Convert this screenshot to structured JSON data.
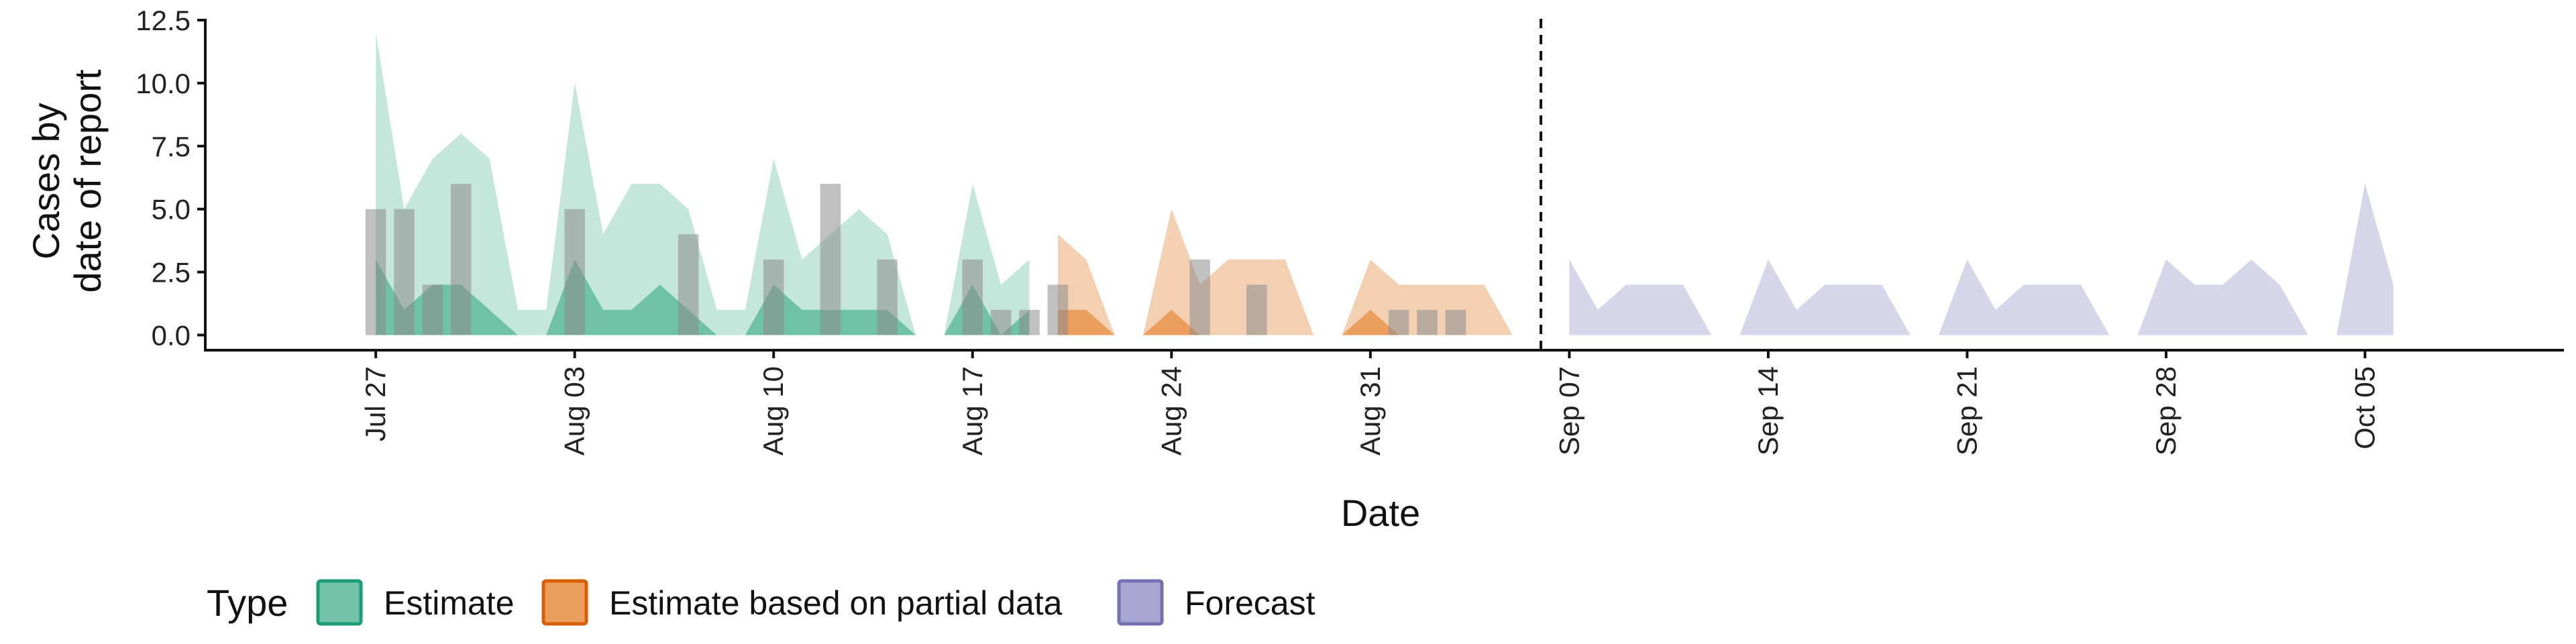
{
  "chart_data": {
    "type": "area",
    "xlabel": "Date",
    "ylabel_lines": [
      "Cases by",
      "date of report"
    ],
    "ylim": [
      -0.6,
      12.5
    ],
    "y_ticks": [
      "0.0",
      "2.5",
      "5.0",
      "7.5",
      "10.0",
      "12.5"
    ],
    "y_tick_values": [
      0,
      2.5,
      5,
      7.5,
      10,
      12.5
    ],
    "xlim": [
      "2020-07-21",
      "2020-10-12"
    ],
    "x_ticks": [
      {
        "date": "2020-07-27",
        "label": "Jul 27"
      },
      {
        "date": "2020-08-03",
        "label": "Aug 03"
      },
      {
        "date": "2020-08-10",
        "label": "Aug 10"
      },
      {
        "date": "2020-08-17",
        "label": "Aug 17"
      },
      {
        "date": "2020-08-24",
        "label": "Aug 24"
      },
      {
        "date": "2020-08-31",
        "label": "Aug 31"
      },
      {
        "date": "2020-09-07",
        "label": "Sep 07"
      },
      {
        "date": "2020-09-14",
        "label": "Sep 14"
      },
      {
        "date": "2020-09-21",
        "label": "Sep 21"
      },
      {
        "date": "2020-09-28",
        "label": "Sep 28"
      },
      {
        "date": "2020-10-05",
        "label": "Oct 05"
      }
    ],
    "vline_date": "2020-09-06",
    "legend": {
      "title": "Type",
      "position": "bottom-left",
      "entries": [
        {
          "label": "Estimate",
          "fill": "#72c3a7",
          "stroke": "#1b9e77"
        },
        {
          "label": "Estimate based on partial data",
          "fill": "#eb9e5e",
          "stroke": "#d95f02"
        },
        {
          "label": "Forecast",
          "fill": "#aaa6d1",
          "stroke": "#7570b3"
        }
      ]
    },
    "observed_cases": {
      "color": "#8c8c8c",
      "points": [
        [
          "2020-07-27",
          5
        ],
        [
          "2020-07-28",
          5
        ],
        [
          "2020-07-29",
          2
        ],
        [
          "2020-07-30",
          6
        ],
        [
          "2020-08-03",
          5
        ],
        [
          "2020-08-07",
          4
        ],
        [
          "2020-08-10",
          3
        ],
        [
          "2020-08-12",
          6
        ],
        [
          "2020-08-14",
          3
        ],
        [
          "2020-08-17",
          3
        ],
        [
          "2020-08-18",
          1
        ],
        [
          "2020-08-19",
          1
        ],
        [
          "2020-08-20",
          2
        ],
        [
          "2020-08-25",
          3
        ],
        [
          "2020-08-27",
          2
        ],
        [
          "2020-09-01",
          1
        ],
        [
          "2020-09-02",
          1
        ],
        [
          "2020-09-03",
          1
        ]
      ]
    },
    "series": [
      {
        "type_label": "Estimate",
        "outer_color": "#c5e6da",
        "inner_color": "#6fc2a5",
        "x": [
          "2020-07-27",
          "2020-07-28",
          "2020-07-29",
          "2020-07-30",
          "2020-07-31",
          "2020-08-01",
          "2020-08-02",
          "2020-08-03",
          "2020-08-04",
          "2020-08-05",
          "2020-08-06",
          "2020-08-07",
          "2020-08-08",
          "2020-08-09",
          "2020-08-10",
          "2020-08-11",
          "2020-08-12",
          "2020-08-13",
          "2020-08-14",
          "2020-08-15",
          "2020-08-16",
          "2020-08-17",
          "2020-08-18",
          "2020-08-19"
        ],
        "outer_upper": [
          12,
          5,
          7,
          8,
          7,
          1,
          1,
          10,
          4,
          6,
          6,
          5,
          1,
          1,
          7,
          3,
          4,
          5,
          4,
          0,
          0,
          6,
          2,
          3
        ],
        "inner_lower": [
          0,
          0,
          0,
          0,
          0,
          0,
          0,
          0,
          0,
          0,
          0,
          0,
          0,
          0,
          0,
          0,
          0,
          0,
          0,
          0,
          0,
          0,
          0,
          0
        ],
        "inner_upper": [
          3,
          1,
          2,
          2,
          1,
          0,
          0,
          3,
          1,
          1,
          2,
          1,
          0,
          0,
          2,
          1,
          1,
          1,
          1,
          0,
          0,
          2,
          0,
          1
        ]
      },
      {
        "type_label": "Estimate based on partial data",
        "outer_color": "#f4d0b3",
        "inner_color": "#eb9e5e",
        "x": [
          "2020-08-20",
          "2020-08-21",
          "2020-08-22",
          "2020-08-23",
          "2020-08-24",
          "2020-08-25",
          "2020-08-26",
          "2020-08-27",
          "2020-08-28",
          "2020-08-29",
          "2020-08-30",
          "2020-08-31",
          "2020-09-01",
          "2020-09-02",
          "2020-09-03",
          "2020-09-04",
          "2020-09-05",
          "2020-09-06"
        ],
        "outer_upper": [
          4,
          3,
          0,
          0,
          5,
          2,
          3,
          3,
          3,
          0,
          0,
          3,
          2,
          2,
          2,
          2,
          0,
          0
        ],
        "inner_lower": [
          0,
          0,
          0,
          0,
          0,
          0,
          0,
          0,
          0,
          0,
          0,
          0,
          0,
          0,
          0,
          0,
          0,
          0
        ],
        "inner_upper": [
          1,
          1,
          0,
          0,
          1,
          0,
          0,
          0,
          0,
          0,
          0,
          1,
          0,
          0,
          0,
          0,
          0,
          0
        ]
      },
      {
        "type_label": "Forecast",
        "outer_color": "#d7d5ea",
        "inner_color": "#aaa6d1",
        "x": [
          "2020-09-07",
          "2020-09-08",
          "2020-09-09",
          "2020-09-10",
          "2020-09-11",
          "2020-09-12",
          "2020-09-13",
          "2020-09-14",
          "2020-09-15",
          "2020-09-16",
          "2020-09-17",
          "2020-09-18",
          "2020-09-19",
          "2020-09-20",
          "2020-09-21",
          "2020-09-22",
          "2020-09-23",
          "2020-09-24",
          "2020-09-25",
          "2020-09-26",
          "2020-09-27",
          "2020-09-28",
          "2020-09-29",
          "2020-09-30",
          "2020-10-01",
          "2020-10-02",
          "2020-10-03",
          "2020-10-04",
          "2020-10-05",
          "2020-10-06"
        ],
        "outer_upper": [
          3,
          1,
          2,
          2,
          2,
          0,
          0,
          3,
          1,
          2,
          2,
          2,
          0,
          0,
          3,
          1,
          2,
          2,
          2,
          0,
          0,
          3,
          2,
          2,
          3,
          2,
          0,
          0,
          6,
          2
        ],
        "inner_lower": [
          0,
          0,
          0,
          0,
          0,
          0,
          0,
          0,
          0,
          0,
          0,
          0,
          0,
          0,
          0,
          0,
          0,
          0,
          0,
          0,
          0,
          0,
          0,
          0,
          0,
          0,
          0,
          0,
          0,
          0
        ],
        "inner_upper": [
          0,
          0,
          0,
          0,
          0,
          0,
          0,
          0,
          0,
          0,
          0,
          0,
          0,
          0,
          0,
          0,
          0,
          0,
          0,
          0,
          0,
          0,
          0,
          0,
          0,
          0,
          0,
          0,
          0,
          0
        ]
      }
    ]
  }
}
